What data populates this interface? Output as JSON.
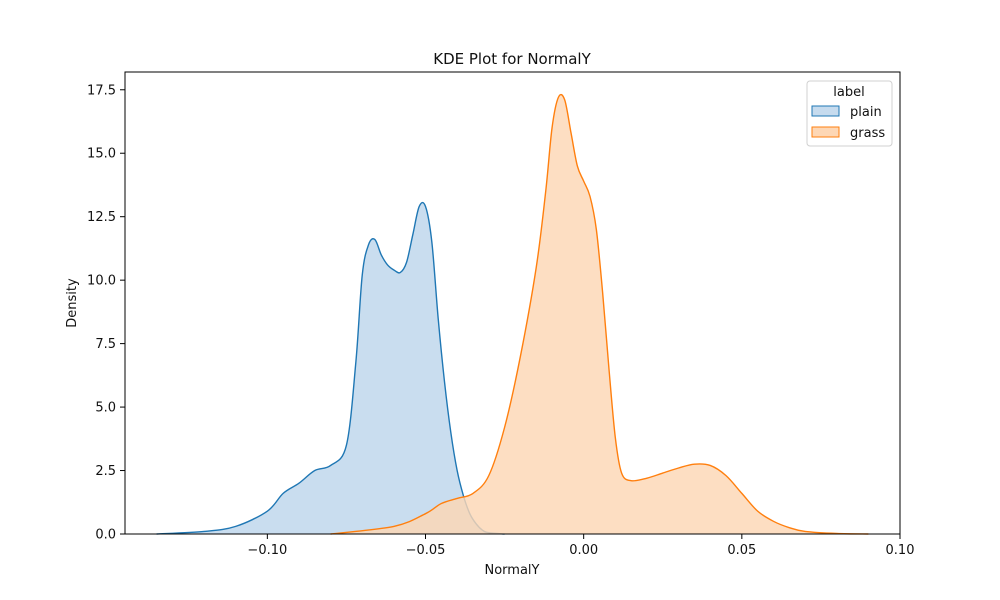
{
  "chart_data": {
    "type": "area",
    "title": "KDE Plot for NormalY",
    "xlabel": "NormalY",
    "ylabel": "Density",
    "xlim": [
      -0.145,
      0.1
    ],
    "ylim": [
      0,
      18.2
    ],
    "xticks": [
      -0.1,
      -0.05,
      0.0,
      0.05,
      0.1
    ],
    "xtick_labels": [
      "−0.10",
      "−0.05",
      "0.00",
      "0.05",
      "0.10"
    ],
    "yticks": [
      0.0,
      2.5,
      5.0,
      7.5,
      10.0,
      12.5,
      15.0,
      17.5
    ],
    "ytick_labels": [
      "0.0",
      "2.5",
      "5.0",
      "7.5",
      "10.0",
      "12.5",
      "15.0",
      "17.5"
    ],
    "grid": false,
    "legend": {
      "title": "label",
      "position": "top-right",
      "entries": [
        "plain",
        "grass"
      ]
    },
    "series": [
      {
        "name": "plain",
        "color": "#1f77b4",
        "fill": "#c6dbee",
        "x": [
          -0.135,
          -0.12,
          -0.11,
          -0.1,
          -0.095,
          -0.09,
          -0.085,
          -0.08,
          -0.075,
          -0.072,
          -0.07,
          -0.068,
          -0.066,
          -0.064,
          -0.062,
          -0.06,
          -0.058,
          -0.056,
          -0.054,
          -0.052,
          -0.05,
          -0.048,
          -0.046,
          -0.044,
          -0.042,
          -0.04,
          -0.038,
          -0.036,
          -0.034,
          -0.032,
          -0.03,
          -0.025
        ],
        "y": [
          0.0,
          0.1,
          0.3,
          0.9,
          1.6,
          2.0,
          2.5,
          2.7,
          3.5,
          6.8,
          10.2,
          11.4,
          11.6,
          11.0,
          10.6,
          10.4,
          10.3,
          10.7,
          11.8,
          12.9,
          12.9,
          11.5,
          8.5,
          6.0,
          4.0,
          2.5,
          1.5,
          0.8,
          0.4,
          0.15,
          0.05,
          0.0
        ]
      },
      {
        "name": "grass",
        "color": "#ff7f0e",
        "fill": "#fdd7b5",
        "x": [
          -0.08,
          -0.06,
          -0.05,
          -0.045,
          -0.04,
          -0.035,
          -0.03,
          -0.025,
          -0.02,
          -0.015,
          -0.012,
          -0.01,
          -0.008,
          -0.006,
          -0.004,
          -0.002,
          0.0,
          0.002,
          0.004,
          0.006,
          0.008,
          0.01,
          0.012,
          0.015,
          0.02,
          0.025,
          0.03,
          0.035,
          0.04,
          0.045,
          0.05,
          0.055,
          0.06,
          0.065,
          0.07,
          0.08,
          0.09
        ],
        "y": [
          0.0,
          0.3,
          0.8,
          1.2,
          1.4,
          1.6,
          2.3,
          4.2,
          7.0,
          10.5,
          13.5,
          16.0,
          17.2,
          17.1,
          15.8,
          14.5,
          13.9,
          13.3,
          12.0,
          9.5,
          6.5,
          3.8,
          2.4,
          2.1,
          2.2,
          2.4,
          2.6,
          2.75,
          2.7,
          2.3,
          1.6,
          0.9,
          0.5,
          0.25,
          0.1,
          0.02,
          0.0
        ]
      }
    ]
  }
}
